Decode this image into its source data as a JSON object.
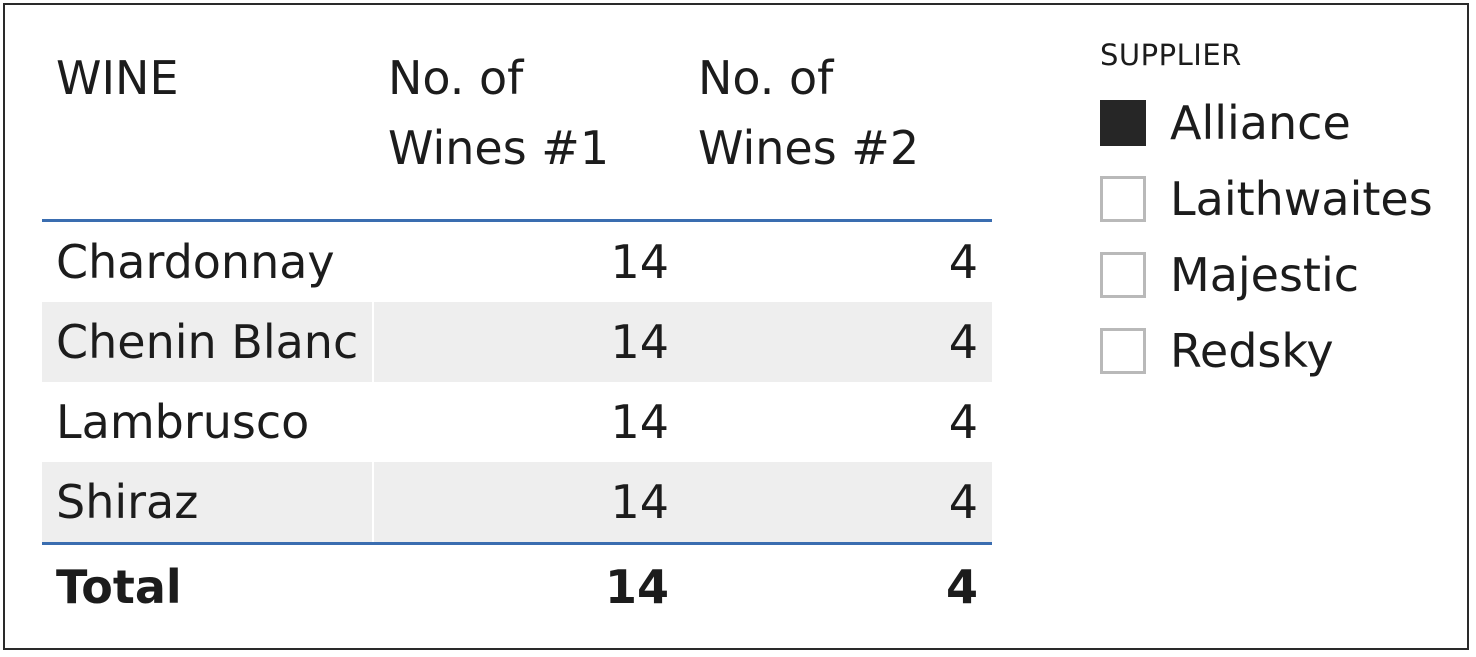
{
  "table": {
    "headers": {
      "wine": "WINE",
      "col1_line1": "No. of",
      "col1_line2": "Wines #1",
      "col2_line1": "No. of",
      "col2_line2": "Wines #2"
    },
    "rows": [
      {
        "wine": "Chardonnay",
        "v1": "14",
        "v2": "4"
      },
      {
        "wine": "Chenin Blanc",
        "v1": "14",
        "v2": "4"
      },
      {
        "wine": "Lambrusco",
        "v1": "14",
        "v2": "4"
      },
      {
        "wine": "Shiraz",
        "v1": "14",
        "v2": "4"
      }
    ],
    "total": {
      "label": "Total",
      "v1": "14",
      "v2": "4"
    },
    "accent_color": "#3a6db0",
    "alt_row_color": "#eeeeee"
  },
  "slicer": {
    "title": "SUPPLIER",
    "options": [
      {
        "label": "Alliance",
        "checked": true
      },
      {
        "label": "Laithwaites",
        "checked": false
      },
      {
        "label": "Majestic",
        "checked": false
      },
      {
        "label": "Redsky",
        "checked": false
      }
    ]
  }
}
